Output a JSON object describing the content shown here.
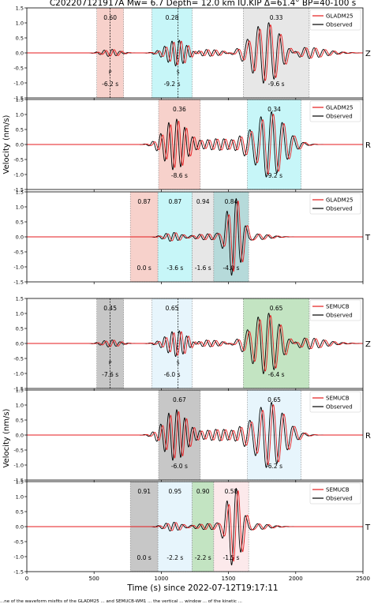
{
  "figure": {
    "title": "C202207121917A  Mw= 6.7   Depth= 12.0 km  IU.KIP  Δ=61.4°  BP=40-100 s",
    "xlabel": "Time (s) since 2022-07-12T19:17:11",
    "ylabel": "Velocity (nm/s)",
    "caption": "...ne of the waveform misfits of the GLADM25 ... and SEMUCB-WM1 ... the vertical ... window ... of the kinetic ..."
  },
  "chart_data": {
    "type": "line",
    "xlim": [
      0,
      2500
    ],
    "ylim": [
      -1.5,
      1.5
    ],
    "xticks": [
      0,
      500,
      1000,
      1500,
      2000,
      2500
    ],
    "yticks": [
      -1.5,
      -1.0,
      -0.5,
      0.0,
      0.5,
      1.0,
      1.5
    ],
    "panels": [
      {
        "group": "GLADM25",
        "component": "Z",
        "legend": [
          "GLADM25",
          "Observed"
        ],
        "markers": [
          {
            "label": "P",
            "x": 620
          },
          {
            "label": "S",
            "x": 1125
          }
        ],
        "windows": [
          {
            "x0": 520,
            "x1": 720,
            "color": "#f6c9c2",
            "cc": "0.60",
            "shift": "-6.2 s"
          },
          {
            "x0": 930,
            "x1": 1230,
            "color": "#bdf5f7",
            "cc": "0.28",
            "shift": "-9.2 s"
          },
          {
            "x0": 1610,
            "x1": 2100,
            "color": "#e3e3e3",
            "cc": "0.33",
            "shift": "-9.6 s"
          }
        ]
      },
      {
        "group": "GLADM25",
        "component": "R",
        "legend": [
          "GLADM25",
          "Observed"
        ],
        "markers": [],
        "windows": [
          {
            "x0": 980,
            "x1": 1290,
            "color": "#f6c9c2",
            "cc": "0.36",
            "shift": "-8.6 s"
          },
          {
            "x0": 1640,
            "x1": 2040,
            "color": "#bdf5f7",
            "cc": "0.34",
            "shift": "-9.2 s"
          }
        ]
      },
      {
        "group": "GLADM25",
        "component": "T",
        "legend": [
          "GLADM25",
          "Observed"
        ],
        "markers": [],
        "windows": [
          {
            "x0": 770,
            "x1": 975,
            "color": "#f6c9c2",
            "cc": "0.87",
            "shift": "0.0 s"
          },
          {
            "x0": 975,
            "x1": 1230,
            "color": "#bdf5f7",
            "cc": "0.87",
            "shift": "-3.6 s"
          },
          {
            "x0": 1230,
            "x1": 1390,
            "color": "#e3e3e3",
            "cc": "0.94",
            "shift": "-1.6 s"
          },
          {
            "x0": 1390,
            "x1": 1650,
            "color": "#a9d3d3",
            "cc": "0.84",
            "shift": "-4.0 s"
          }
        ]
      },
      {
        "group": "SEMUCB",
        "component": "Z",
        "legend": [
          "SEMUCB",
          "Observed"
        ],
        "markers": [
          {
            "label": "P",
            "x": 620
          },
          {
            "label": "S",
            "x": 1125
          }
        ],
        "windows": [
          {
            "x0": 520,
            "x1": 720,
            "color": "#bdbdbd",
            "cc": "0.45",
            "shift": "-7.6 s"
          },
          {
            "x0": 930,
            "x1": 1230,
            "color": "#e3f3fb",
            "cc": "0.65",
            "shift": "-6.0 s"
          },
          {
            "x0": 1610,
            "x1": 2100,
            "color": "#b9dfb7",
            "cc": "0.65",
            "shift": "-6.4 s"
          }
        ]
      },
      {
        "group": "SEMUCB",
        "component": "R",
        "legend": [
          "SEMUCB",
          "Observed"
        ],
        "markers": [],
        "windows": [
          {
            "x0": 980,
            "x1": 1290,
            "color": "#bdbdbd",
            "cc": "0.67",
            "shift": "-6.0 s"
          },
          {
            "x0": 1640,
            "x1": 2040,
            "color": "#e3f3fb",
            "cc": "0.65",
            "shift": "-6.2 s"
          }
        ]
      },
      {
        "group": "SEMUCB",
        "component": "T",
        "legend": [
          "SEMUCB",
          "Observed"
        ],
        "markers": [],
        "windows": [
          {
            "x0": 770,
            "x1": 975,
            "color": "#bdbdbd",
            "cc": "0.91",
            "shift": "0.0 s"
          },
          {
            "x0": 975,
            "x1": 1230,
            "color": "#e3f3fb",
            "cc": "0.95",
            "shift": "-2.2 s"
          },
          {
            "x0": 1230,
            "x1": 1390,
            "color": "#b9dfb7",
            "cc": "0.90",
            "shift": "-2.2 s"
          },
          {
            "x0": 1390,
            "x1": 1650,
            "color": "#fbe5e8",
            "cc": "0.58",
            "shift": "-1.5 s"
          }
        ]
      }
    ],
    "waveforms": {
      "Z": [
        {
          "c": 620,
          "a": 0.12,
          "p": 60,
          "w": 60
        },
        {
          "c": 1120,
          "a": 0.45,
          "p": 55,
          "w": 80
        },
        {
          "c": 1320,
          "a": 0.12,
          "p": 60,
          "w": 120
        },
        {
          "c": 1780,
          "a": 1.0,
          "p": 80,
          "w": 110
        },
        {
          "c": 2050,
          "a": 0.2,
          "p": 70,
          "w": 150
        }
      ],
      "R": [
        {
          "c": 1100,
          "a": 0.85,
          "p": 60,
          "w": 80
        },
        {
          "c": 1450,
          "a": 0.2,
          "p": 60,
          "w": 150
        },
        {
          "c": 1800,
          "a": 1.1,
          "p": 80,
          "w": 110
        }
      ],
      "T": [
        {
          "c": 1080,
          "a": 0.15,
          "p": 60,
          "w": 60
        },
        {
          "c": 1330,
          "a": 0.1,
          "p": 60,
          "w": 80
        },
        {
          "c": 1540,
          "a": 1.35,
          "p": 70,
          "w": 55
        },
        {
          "c": 1700,
          "a": 0.1,
          "p": 70,
          "w": 100
        }
      ]
    },
    "colors": {
      "synthetic": "#e41a1c",
      "observed": "#000000"
    }
  }
}
